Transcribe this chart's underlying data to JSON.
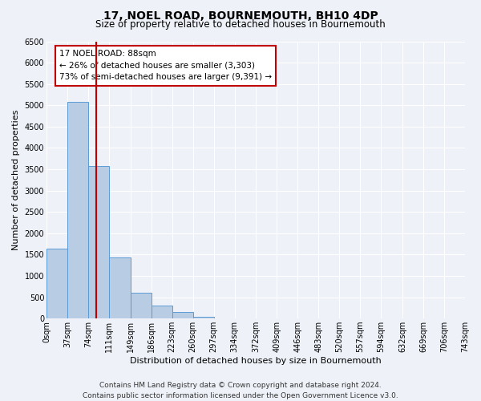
{
  "title": "17, NOEL ROAD, BOURNEMOUTH, BH10 4DP",
  "subtitle": "Size of property relative to detached houses in Bournemouth",
  "xlabel": "Distribution of detached houses by size in Bournemouth",
  "ylabel": "Number of detached properties",
  "footer_line1": "Contains HM Land Registry data © Crown copyright and database right 2024.",
  "footer_line2": "Contains public sector information licensed under the Open Government Licence v3.0.",
  "bin_edges": [
    0,
    37,
    74,
    111,
    149,
    186,
    223,
    260,
    297,
    334,
    372,
    409,
    446,
    483,
    520,
    557,
    594,
    632,
    669,
    706,
    743
  ],
  "bin_labels": [
    "0sqm",
    "37sqm",
    "74sqm",
    "111sqm",
    "149sqm",
    "186sqm",
    "223sqm",
    "260sqm",
    "297sqm",
    "334sqm",
    "372sqm",
    "409sqm",
    "446sqm",
    "483sqm",
    "520sqm",
    "557sqm",
    "594sqm",
    "632sqm",
    "669sqm",
    "706sqm",
    "743sqm"
  ],
  "bar_heights": [
    1630,
    5080,
    3580,
    1430,
    610,
    300,
    150,
    50,
    0,
    0,
    0,
    0,
    0,
    0,
    0,
    0,
    0,
    0,
    0,
    0
  ],
  "bar_color": "#b8cce4",
  "bar_edgecolor": "#5b9bd5",
  "vline_x": 88,
  "vline_color": "#c00000",
  "annotation_title": "17 NOEL ROAD: 88sqm",
  "annotation_line2": "← 26% of detached houses are smaller (3,303)",
  "annotation_line3": "73% of semi-detached houses are larger (9,391) →",
  "annotation_box_color": "#c00000",
  "annotation_facecolor": "white",
  "ylim": [
    0,
    6500
  ],
  "yticks": [
    0,
    500,
    1000,
    1500,
    2000,
    2500,
    3000,
    3500,
    4000,
    4500,
    5000,
    5500,
    6000,
    6500
  ],
  "background_color": "#eef2f8",
  "plot_background": "#eef2f8",
  "grid_color": "white",
  "title_fontsize": 10,
  "subtitle_fontsize": 8.5,
  "xlabel_fontsize": 8,
  "ylabel_fontsize": 8,
  "tick_fontsize": 7,
  "footer_fontsize": 6.5,
  "annot_fontsize": 7.5
}
